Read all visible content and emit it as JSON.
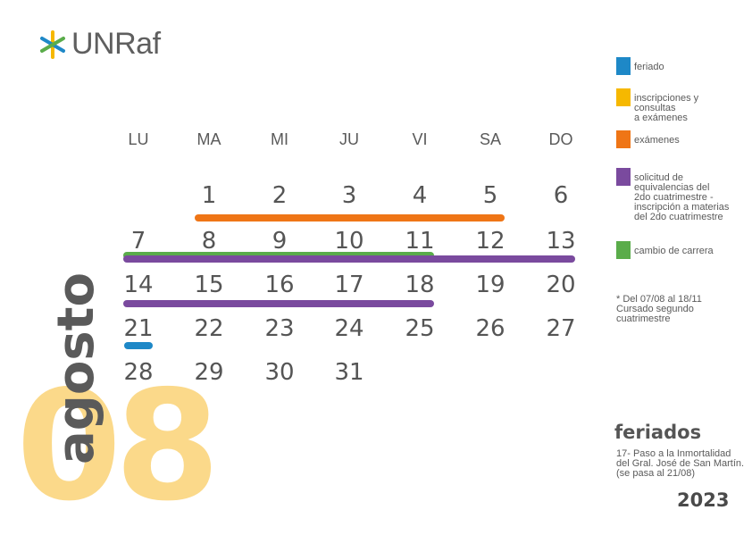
{
  "logo": {
    "text": "UNRaf"
  },
  "big_number": "08",
  "month": "agosto",
  "weekdays": [
    "LU",
    "MA",
    "MI",
    "JU",
    "VI",
    "SA",
    "DO"
  ],
  "days": [
    {
      "n": "1",
      "col": 1,
      "row": 0
    },
    {
      "n": "2",
      "col": 2,
      "row": 0
    },
    {
      "n": "3",
      "col": 3,
      "row": 0
    },
    {
      "n": "4",
      "col": 4,
      "row": 0
    },
    {
      "n": "5",
      "col": 5,
      "row": 0
    },
    {
      "n": "6",
      "col": 6,
      "row": 0
    },
    {
      "n": "7",
      "col": 0,
      "row": 1
    },
    {
      "n": "8",
      "col": 1,
      "row": 1
    },
    {
      "n": "9",
      "col": 2,
      "row": 1
    },
    {
      "n": "10",
      "col": 3,
      "row": 1
    },
    {
      "n": "11",
      "col": 4,
      "row": 1
    },
    {
      "n": "12",
      "col": 5,
      "row": 1
    },
    {
      "n": "13",
      "col": 6,
      "row": 1
    },
    {
      "n": "14",
      "col": 0,
      "row": 2
    },
    {
      "n": "15",
      "col": 1,
      "row": 2
    },
    {
      "n": "16",
      "col": 2,
      "row": 2
    },
    {
      "n": "17",
      "col": 3,
      "row": 2
    },
    {
      "n": "18",
      "col": 4,
      "row": 2
    },
    {
      "n": "19",
      "col": 5,
      "row": 2
    },
    {
      "n": "20",
      "col": 6,
      "row": 2
    },
    {
      "n": "21",
      "col": 0,
      "row": 3
    },
    {
      "n": "22",
      "col": 1,
      "row": 3
    },
    {
      "n": "23",
      "col": 2,
      "row": 3
    },
    {
      "n": "24",
      "col": 3,
      "row": 3
    },
    {
      "n": "25",
      "col": 4,
      "row": 3
    },
    {
      "n": "26",
      "col": 5,
      "row": 3
    },
    {
      "n": "27",
      "col": 6,
      "row": 3
    },
    {
      "n": "28",
      "col": 0,
      "row": 4
    },
    {
      "n": "29",
      "col": 1,
      "row": 4
    },
    {
      "n": "30",
      "col": 2,
      "row": 4
    },
    {
      "n": "31",
      "col": 3,
      "row": 4
    }
  ],
  "colors": {
    "feriado": "#1e88c7",
    "inscripciones": "#f6b800",
    "examenes": "#ef7516",
    "equivalencias": "#7a4a9e",
    "cambio": "#5aac4a",
    "big_number": "#fbd98a"
  },
  "legend": [
    {
      "key": "feriado",
      "label": "feriado"
    },
    {
      "key": "inscripciones",
      "label": "inscripciones y\nconsultas\na exámenes"
    },
    {
      "key": "examenes",
      "label": "exámenes"
    },
    {
      "key": "equivalencias",
      "label": "solicitud de\nequivalencias del\n2do cuatrimestre -\ninscripción a materias\ndel 2do cuatrimestre"
    },
    {
      "key": "cambio",
      "label": "cambio de carrera"
    }
  ],
  "event_ranges": [
    {
      "key": "examenes",
      "from": "1",
      "to": "5"
    },
    {
      "key": "cambio",
      "from": "7",
      "to": "11"
    },
    {
      "key": "equivalencias",
      "from": "7",
      "to": "13"
    },
    {
      "key": "equivalencias",
      "from": "14",
      "to": "18"
    },
    {
      "key": "feriado",
      "from": "21",
      "to": "21"
    }
  ],
  "note": "* Del 07/08 al 18/11\nCursado segundo\ncuatrimestre",
  "holidays": {
    "title": "feriados",
    "text": "17- Paso a la Inmortalidad\ndel Gral. José de San Martín.\n(se pasa al 21/08)"
  },
  "year": "2023"
}
